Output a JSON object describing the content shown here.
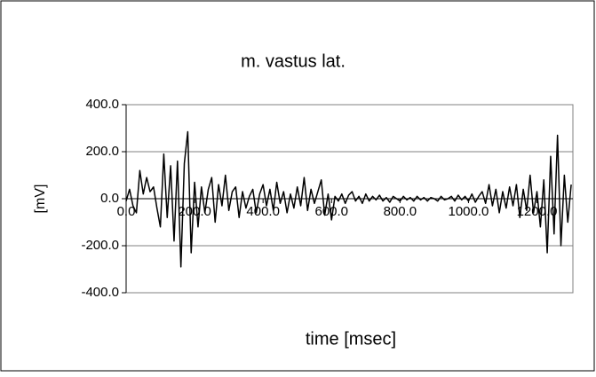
{
  "chart_data": {
    "type": "line",
    "title": "m. vastus lat.",
    "xlabel": "time [msec]",
    "ylabel": "[mV]",
    "x": [
      0,
      10,
      20,
      30,
      40,
      50,
      60,
      70,
      80,
      90,
      100,
      110,
      120,
      130,
      140,
      150,
      160,
      170,
      180,
      190,
      200,
      210,
      220,
      230,
      240,
      250,
      260,
      270,
      280,
      290,
      300,
      310,
      320,
      330,
      340,
      350,
      360,
      370,
      380,
      390,
      400,
      410,
      420,
      430,
      440,
      450,
      460,
      470,
      480,
      490,
      500,
      510,
      520,
      530,
      540,
      550,
      560,
      570,
      580,
      590,
      600,
      610,
      620,
      630,
      640,
      650,
      660,
      670,
      680,
      690,
      700,
      710,
      720,
      730,
      740,
      750,
      760,
      770,
      780,
      790,
      800,
      810,
      820,
      830,
      840,
      850,
      860,
      870,
      880,
      890,
      900,
      910,
      920,
      930,
      940,
      950,
      960,
      970,
      980,
      990,
      1000,
      1010,
      1020,
      1030,
      1040,
      1050,
      1060,
      1070,
      1080,
      1090,
      1100,
      1110,
      1120,
      1130,
      1140,
      1150,
      1160,
      1170,
      1180,
      1190,
      1200,
      1210,
      1220,
      1230,
      1240,
      1250,
      1260,
      1270,
      1280,
      1290,
      1300
    ],
    "series": [
      {
        "color": "#000000",
        "values": [
          -10,
          40,
          -30,
          -60,
          120,
          20,
          90,
          30,
          50,
          -40,
          -120,
          190,
          -80,
          140,
          -180,
          160,
          -290,
          150,
          285,
          -230,
          70,
          -120,
          50,
          -60,
          40,
          90,
          -100,
          60,
          -30,
          100,
          -50,
          30,
          50,
          -80,
          30,
          -40,
          10,
          40,
          -60,
          20,
          60,
          -30,
          40,
          -50,
          70,
          -20,
          30,
          -60,
          20,
          -40,
          50,
          -30,
          90,
          -50,
          40,
          -20,
          30,
          80,
          -70,
          20,
          -90,
          10,
          -10,
          20,
          -20,
          15,
          30,
          -10,
          10,
          -20,
          20,
          -10,
          10,
          -5,
          15,
          -10,
          5,
          -15,
          10,
          0,
          -10,
          10,
          -5,
          5,
          -10,
          10,
          -5,
          5,
          -10,
          5,
          0,
          -10,
          10,
          -5,
          0,
          10,
          -10,
          15,
          -5,
          10,
          -10,
          20,
          -15,
          10,
          30,
          -20,
          60,
          -30,
          40,
          -60,
          30,
          -40,
          50,
          -30,
          60,
          -80,
          40,
          -50,
          100,
          -60,
          30,
          -120,
          80,
          -230,
          180,
          -150,
          270,
          -200,
          100,
          -100,
          60
        ]
      }
    ],
    "xlim": [
      0,
      1305
    ],
    "xticks": [
      {
        "value": 0,
        "label": "0.0"
      },
      {
        "value": 200,
        "label": "200.0"
      },
      {
        "value": 400,
        "label": "400.0"
      },
      {
        "value": 600,
        "label": "600.0"
      },
      {
        "value": 800,
        "label": "800.0"
      },
      {
        "value": 1000,
        "label": "1000.0"
      },
      {
        "value": 1200,
        "label": "1200.0"
      }
    ],
    "ylim": [
      -400,
      400
    ],
    "yticks": [
      {
        "value": -400,
        "label": "-400.0"
      },
      {
        "value": -200,
        "label": "-200.0"
      },
      {
        "value": 0,
        "label": "0.0"
      },
      {
        "value": 200,
        "label": "200.0"
      },
      {
        "value": 400,
        "label": "400.0"
      }
    ],
    "grid": true
  }
}
